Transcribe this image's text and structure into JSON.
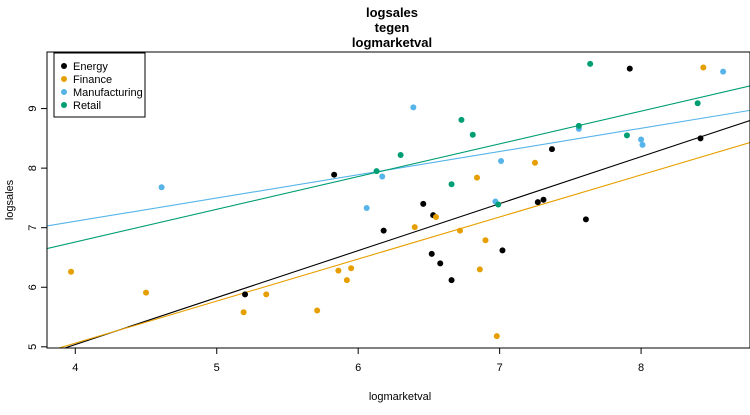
{
  "chart_data": {
    "type": "scatter",
    "title": [
      "logsales",
      "tegen",
      "logmarketval"
    ],
    "xlabel": "logmarketval",
    "ylabel": "logsales",
    "xlim": [
      3.8,
      8.77
    ],
    "ylim": [
      4.98,
      9.95
    ],
    "xticks": [
      4,
      5,
      6,
      7,
      8
    ],
    "yticks": [
      5,
      6,
      7,
      8,
      9
    ],
    "legend_position": "top-left",
    "series": [
      {
        "name": "Energy",
        "color": "#000000",
        "points": [
          [
            5.2,
            5.88
          ],
          [
            5.83,
            7.89
          ],
          [
            6.18,
            6.95
          ],
          [
            6.46,
            7.4
          ],
          [
            6.52,
            6.56
          ],
          [
            6.53,
            7.21
          ],
          [
            6.58,
            6.4
          ],
          [
            6.66,
            6.12
          ],
          [
            7.02,
            6.62
          ],
          [
            7.27,
            7.43
          ],
          [
            7.31,
            7.47
          ],
          [
            7.37,
            8.32
          ],
          [
            7.61,
            7.14
          ],
          [
            7.92,
            9.67
          ],
          [
            8.42,
            8.5
          ]
        ],
        "fit": [
          [
            3.8,
            4.88
          ],
          [
            8.77,
            8.8
          ]
        ]
      },
      {
        "name": "Finance",
        "color": "#E69F00",
        "points": [
          [
            3.97,
            6.26
          ],
          [
            4.5,
            5.91
          ],
          [
            5.19,
            5.58
          ],
          [
            5.35,
            5.88
          ],
          [
            5.71,
            5.61
          ],
          [
            5.86,
            6.28
          ],
          [
            5.92,
            6.12
          ],
          [
            5.95,
            6.32
          ],
          [
            6.4,
            7.01
          ],
          [
            6.55,
            7.18
          ],
          [
            6.72,
            6.95
          ],
          [
            6.84,
            7.84
          ],
          [
            6.86,
            6.3
          ],
          [
            6.9,
            6.79
          ],
          [
            6.98,
            5.18
          ],
          [
            7.25,
            8.09
          ],
          [
            8.44,
            9.69
          ]
        ],
        "fit": [
          [
            3.8,
            4.92
          ],
          [
            8.77,
            8.43
          ]
        ]
      },
      {
        "name": "Manufacturing",
        "color": "#56B4E9",
        "points": [
          [
            4.61,
            7.68
          ],
          [
            6.06,
            7.33
          ],
          [
            6.17,
            7.86
          ],
          [
            6.39,
            9.02
          ],
          [
            6.97,
            7.44
          ],
          [
            7.01,
            8.12
          ],
          [
            7.56,
            8.66
          ],
          [
            8.0,
            8.48
          ],
          [
            8.01,
            8.39
          ],
          [
            8.58,
            9.62
          ]
        ],
        "fit": [
          [
            3.8,
            7.03
          ],
          [
            8.77,
            8.97
          ]
        ]
      },
      {
        "name": "Retail",
        "color": "#009E73",
        "points": [
          [
            6.13,
            7.95
          ],
          [
            6.3,
            8.22
          ],
          [
            6.66,
            7.73
          ],
          [
            6.73,
            8.81
          ],
          [
            6.81,
            8.56
          ],
          [
            6.99,
            7.39
          ],
          [
            7.56,
            8.71
          ],
          [
            7.64,
            9.75
          ],
          [
            7.9,
            8.55
          ],
          [
            8.4,
            9.09
          ]
        ],
        "fit": [
          [
            3.8,
            6.65
          ],
          [
            8.77,
            9.38
          ]
        ]
      }
    ]
  }
}
